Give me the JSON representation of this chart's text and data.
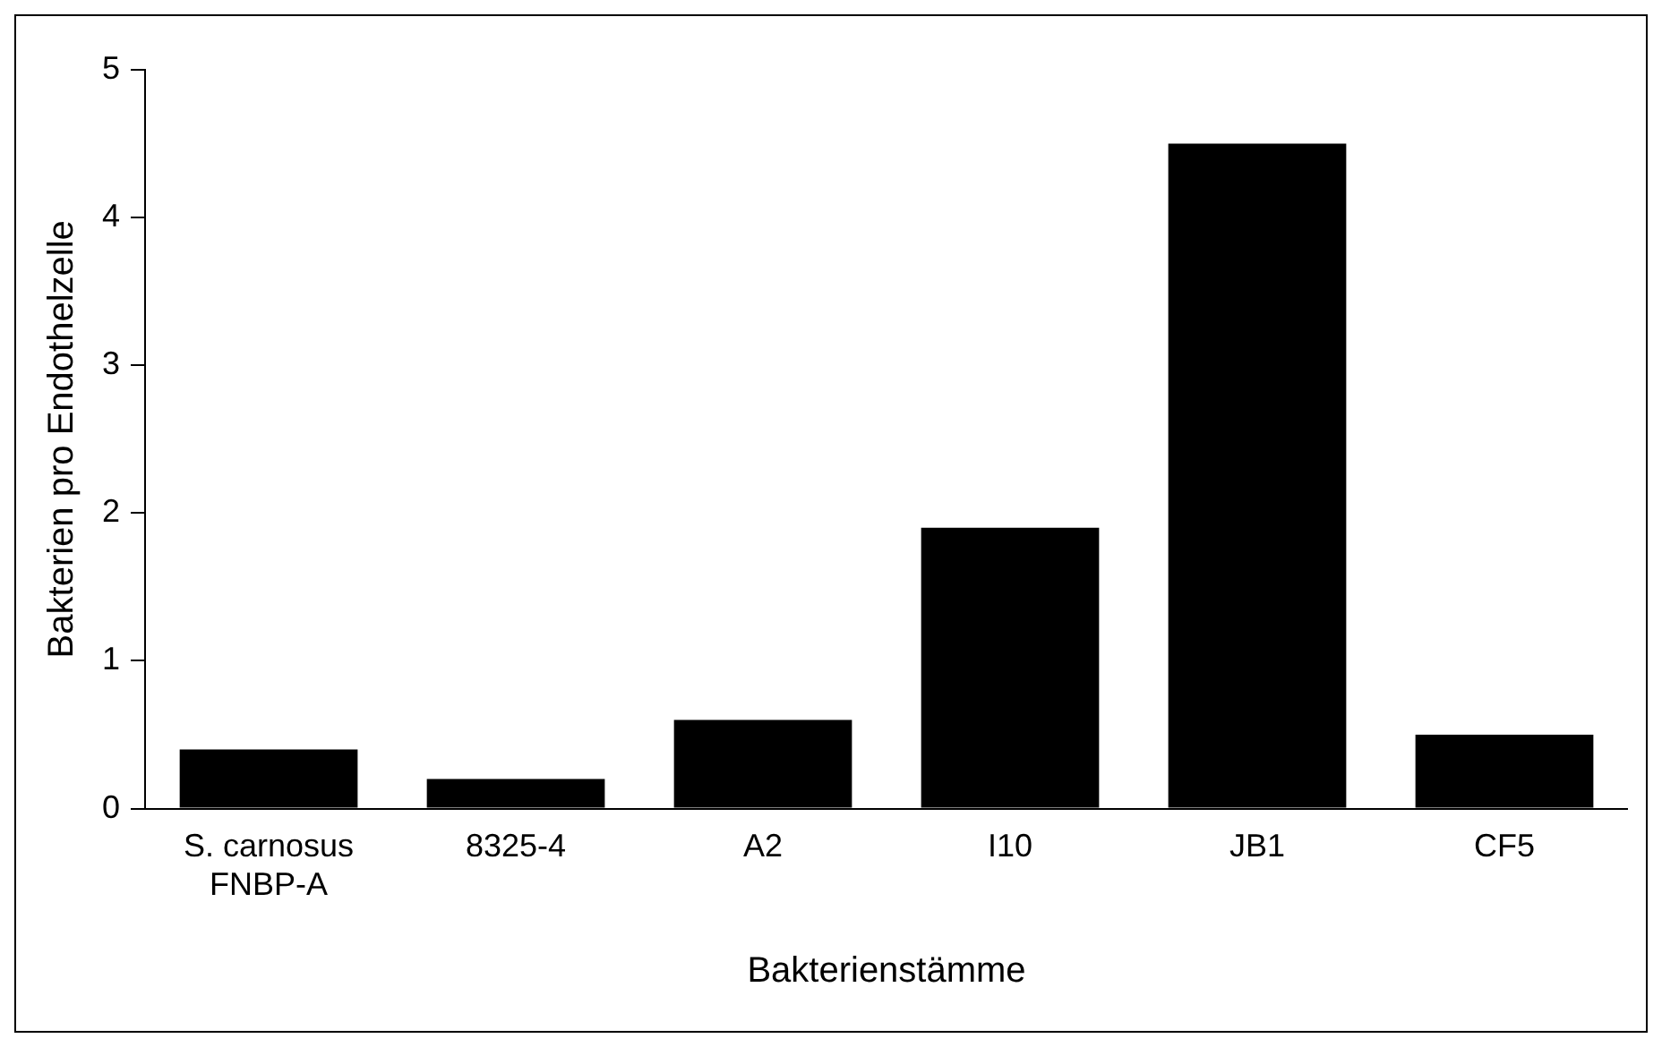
{
  "chart_data": {
    "type": "bar",
    "xlabel": "Bakterienstämme",
    "ylabel": "Bakterien pro Endothelzelle",
    "categories": [
      "S. carnosus\nFNBP-A",
      "8325-4",
      "A2",
      "I10",
      "JB1",
      "CF5"
    ],
    "values": [
      0.4,
      0.2,
      0.6,
      1.9,
      4.5,
      0.5
    ],
    "color": "#000000",
    "ylim": [
      0,
      5
    ],
    "yticks": [
      0,
      1,
      2,
      3,
      4,
      5
    ],
    "grid": false,
    "legend": false
  }
}
